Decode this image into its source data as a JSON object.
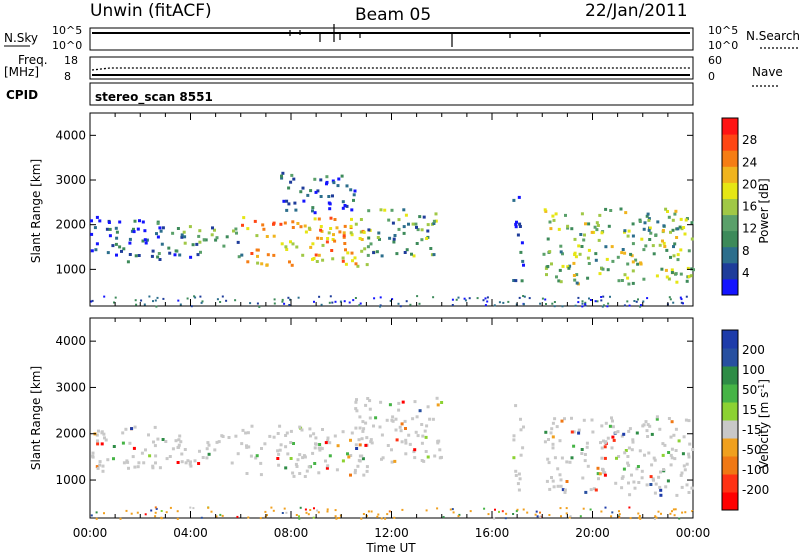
{
  "header": {
    "title": "Unwin (fitACF)",
    "beam": "Beam 05",
    "date": "22/Jan/2011"
  },
  "top_panels": {
    "nsky_label": "N.Sky",
    "nsky_ticks": [
      "10^5",
      "10^0"
    ],
    "nsearch_label": "N.Search",
    "nsearch_ticks": [
      "10^5",
      "10^0"
    ],
    "freq_label": "Freq.",
    "freq_unit": "[MHz]",
    "freq_ticks": [
      "18",
      "8"
    ],
    "nave_label": "Nave",
    "nave_ticks": [
      "60",
      "0"
    ],
    "cpid_label": "CPID",
    "cpid_value": "stereo_scan 8551"
  },
  "chart_data": [
    {
      "type": "heatmap",
      "name": "power",
      "ylabel": "Slant Range [km]",
      "ylim": [
        180,
        4500
      ],
      "yticks": [
        "1000",
        "2000",
        "3000",
        "4000"
      ],
      "xlim": [
        0,
        24
      ],
      "colorbar": {
        "label": "Power [dB]",
        "ticks": [
          "4",
          "8",
          "12",
          "16",
          "20",
          "24",
          "28"
        ],
        "colors": [
          "#1414ff",
          "#1e3c9a",
          "#2c6e8c",
          "#3d8a5a",
          "#5aa06a",
          "#a0c846",
          "#e6e614",
          "#f0b41e",
          "#f57d14",
          "#ff4614",
          "#ff1414"
        ]
      },
      "scatter_regions": [
        {
          "t0": 0.0,
          "t1": 3.0,
          "r_lo": 1200,
          "r_hi": 2200,
          "level": 0.12
        },
        {
          "t0": 3.0,
          "t1": 6.0,
          "r_lo": 1300,
          "r_hi": 2000,
          "level": 0.28
        },
        {
          "t0": 6.0,
          "t1": 11.0,
          "r_lo": 1100,
          "r_hi": 2200,
          "level": 0.7
        },
        {
          "t0": 7.5,
          "t1": 10.5,
          "r_lo": 2300,
          "r_hi": 3200,
          "level": 0.15
        },
        {
          "t0": 11.0,
          "t1": 13.8,
          "r_lo": 1300,
          "r_hi": 2400,
          "level": 0.35
        },
        {
          "t0": 16.8,
          "t1": 17.2,
          "r_lo": 700,
          "r_hi": 2800,
          "level": 0.1
        },
        {
          "t0": 18.0,
          "t1": 24.0,
          "r_lo": 700,
          "r_hi": 2400,
          "level": 0.45
        }
      ]
    },
    {
      "type": "heatmap",
      "name": "velocity",
      "ylabel": "Slant Range [km]",
      "ylim": [
        180,
        4500
      ],
      "yticks": [
        "1000",
        "2000",
        "3000",
        "4000"
      ],
      "xlim": [
        0,
        24
      ],
      "xticks": [
        "00:00",
        "04:00",
        "08:00",
        "12:00",
        "16:00",
        "20:00",
        "00:00"
      ],
      "xlabel": "Time UT",
      "colorbar": {
        "label": "Velocity [m s",
        "label_sup": "-1",
        "label_end": "]",
        "ticks": [
          "200",
          "100",
          "50",
          "15",
          "-15",
          "-50",
          "-100",
          "-200"
        ],
        "colors": [
          "#1e3caa",
          "#2850a0",
          "#2e8c46",
          "#46b446",
          "#8cd232",
          "#c8c8c8",
          "#f0a01e",
          "#f07814",
          "#ff3214",
          "#ff0000"
        ]
      },
      "scatter_regions": [
        {
          "t0": 0.0,
          "t1": 3.0,
          "r_lo": 1200,
          "r_hi": 2200,
          "level": 0.5
        },
        {
          "t0": 3.0,
          "t1": 6.0,
          "r_lo": 1300,
          "r_hi": 2000,
          "level": 0.5
        },
        {
          "t0": 6.0,
          "t1": 11.0,
          "r_lo": 1100,
          "r_hi": 2200,
          "level": 0.5
        },
        {
          "t0": 10.5,
          "t1": 14.0,
          "r_lo": 1400,
          "r_hi": 2800,
          "level": 0.5
        },
        {
          "t0": 16.8,
          "t1": 17.2,
          "r_lo": 700,
          "r_hi": 2800,
          "level": 0.35
        },
        {
          "t0": 18.0,
          "t1": 24.0,
          "r_lo": 700,
          "r_hi": 2400,
          "level": 0.5
        }
      ]
    }
  ]
}
